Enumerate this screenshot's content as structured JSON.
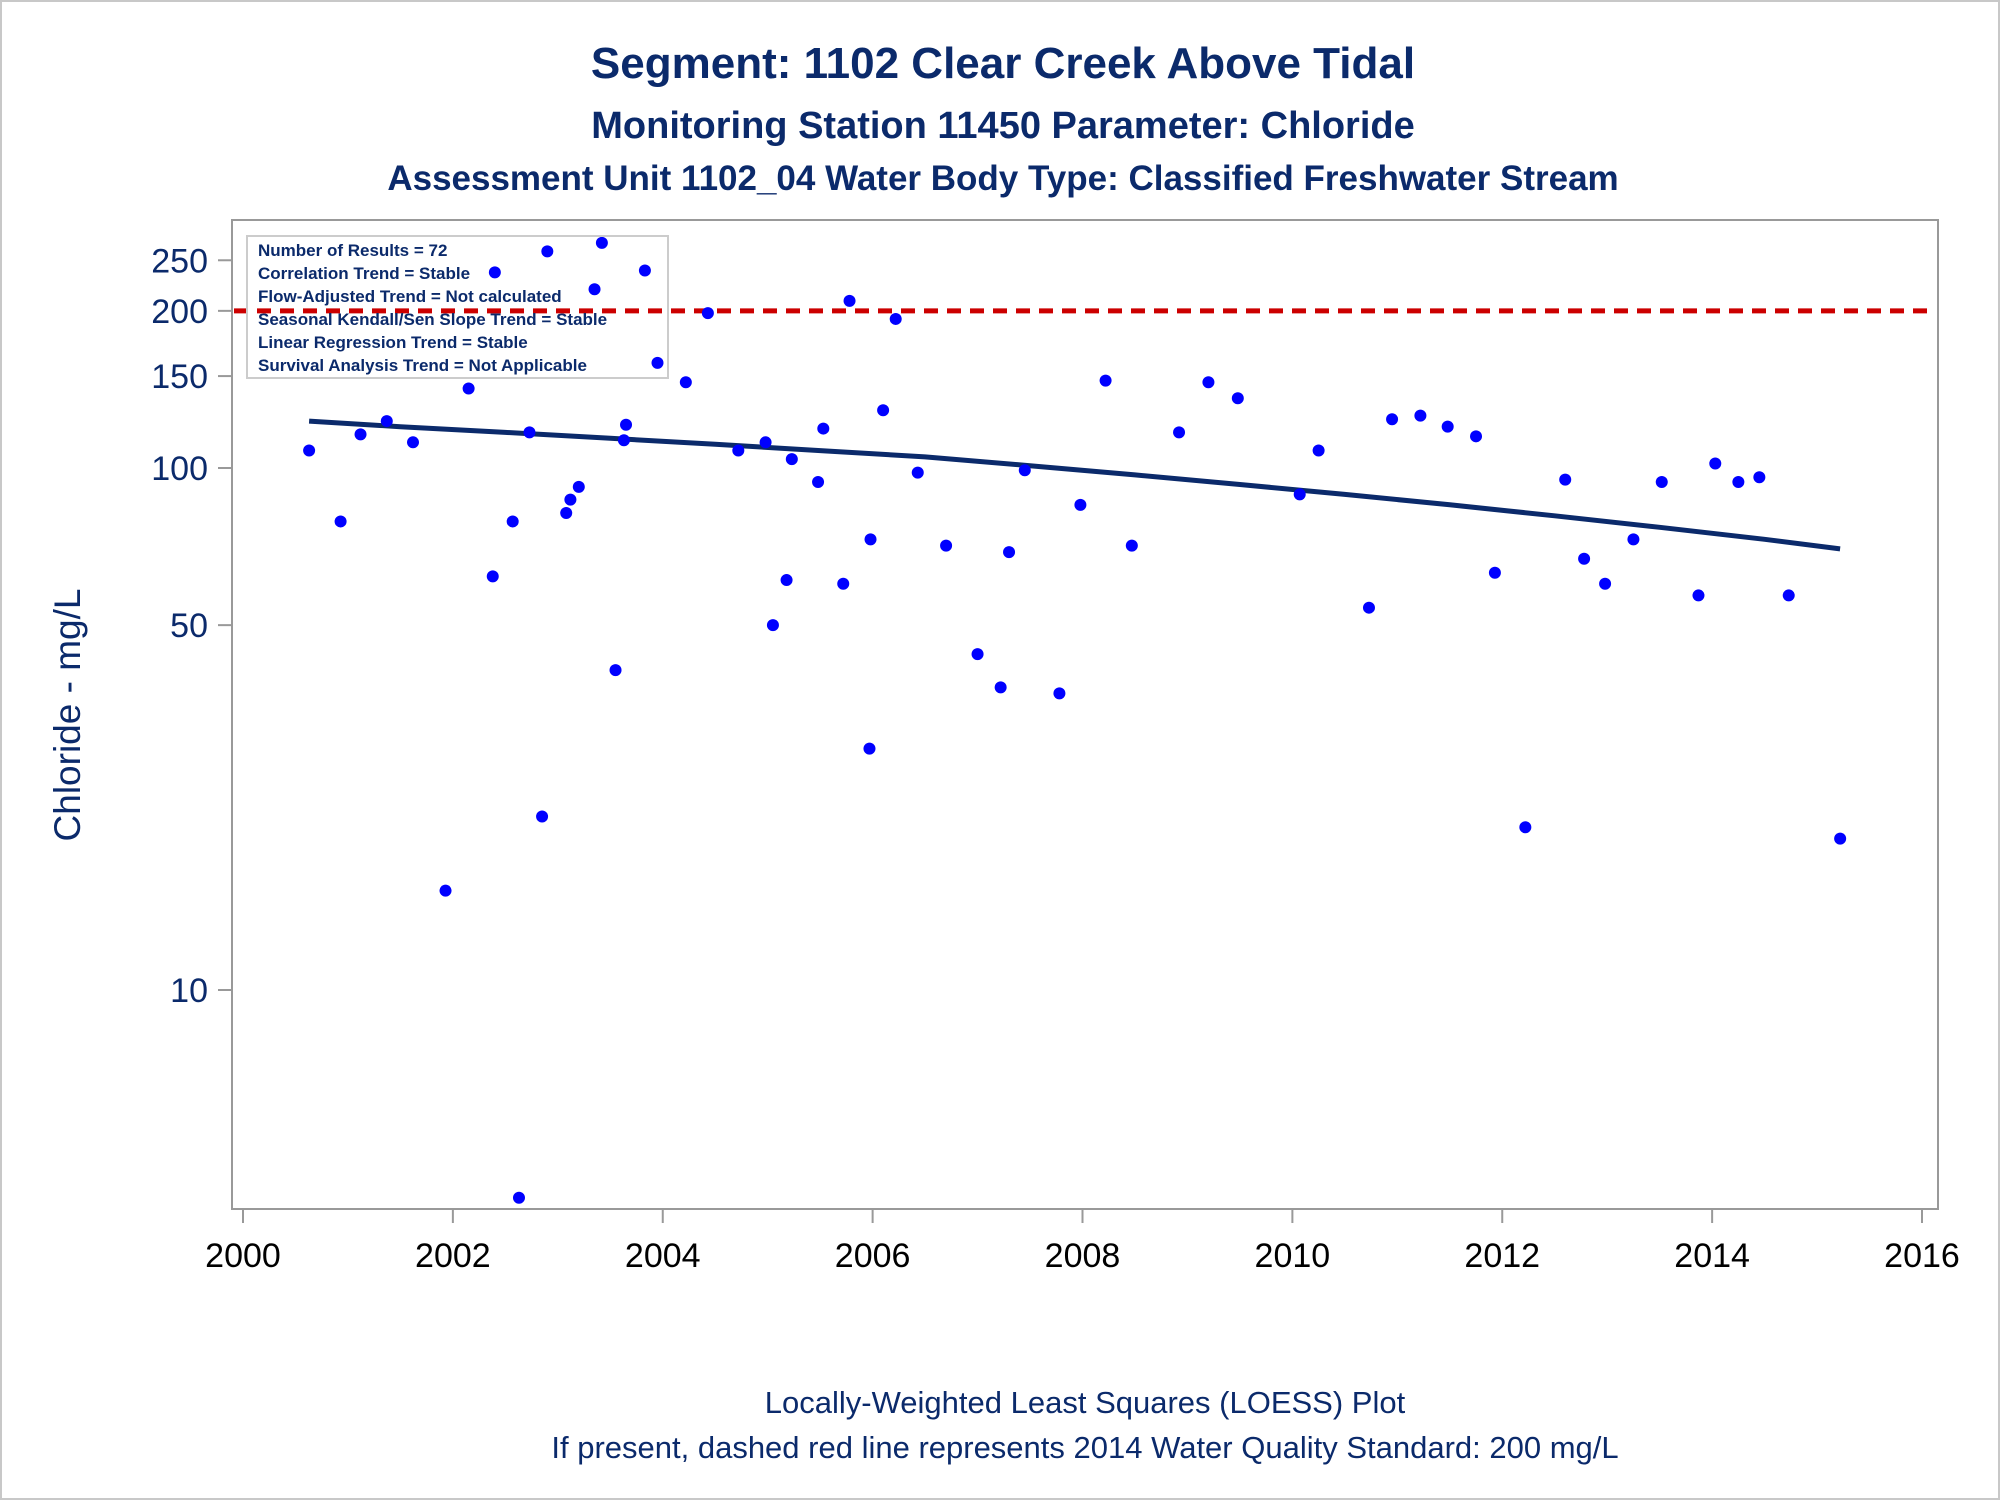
{
  "chart_data": {
    "type": "scatter",
    "title": "Segment: 1102  Clear Creek Above Tidal",
    "subtitle": "Monitoring Station 11450 Parameter: Chloride",
    "subtitle2": "Assessment Unit 1102_04   Water Body Type: Classified Freshwater Stream",
    "xlabel": "",
    "ylabel": "Chloride - mg/L",
    "footnote1": "Locally-Weighted Least Squares (LOESS) Plot",
    "footnote2": "If present, dashed red line represents 2014 Water Quality Standard: 200    mg/L",
    "y_scale": "log",
    "xlim": [
      2000,
      2016
    ],
    "ylim": [
      4,
      300
    ],
    "x_ticks": [
      2000,
      2002,
      2004,
      2006,
      2008,
      2010,
      2012,
      2014,
      2016
    ],
    "y_ticks": [
      10,
      50,
      100,
      150,
      200,
      250
    ],
    "grid": false,
    "legend_placement": "top-left",
    "info_box": [
      "Number of Results = 72",
      "Correlation Trend = Stable",
      "Flow-Adjusted Trend = Not calculated",
      "Seasonal Kendall/Sen Slope Trend = Stable",
      "Linear Regression Trend = Stable",
      "Survival Analysis Trend = Not Applicable"
    ],
    "standard_line": {
      "value": 200,
      "color": "#cc0000",
      "style": "dashed"
    },
    "colors": {
      "points": "#0000ff",
      "trend": "#0b2a6b",
      "text": "#0b2a6b",
      "axis": "#999999"
    },
    "series": [
      {
        "type": "scatter",
        "points": [
          [
            2000.63,
            108
          ],
          [
            2000.93,
            79
          ],
          [
            2001.12,
            116
          ],
          [
            2001.37,
            123
          ],
          [
            2001.62,
            112
          ],
          [
            2001.93,
            15.5
          ],
          [
            2002.15,
            142
          ],
          [
            2002.38,
            62
          ],
          [
            2002.4,
            237
          ],
          [
            2002.57,
            79
          ],
          [
            2002.63,
            4
          ],
          [
            2002.73,
            117
          ],
          [
            2002.85,
            21.5
          ],
          [
            2002.9,
            260
          ],
          [
            2003.08,
            82
          ],
          [
            2003.12,
            87
          ],
          [
            2003.2,
            92
          ],
          [
            2003.35,
            220
          ],
          [
            2003.42,
            270
          ],
          [
            2003.55,
            41
          ],
          [
            2003.63,
            113
          ],
          [
            2003.65,
            121
          ],
          [
            2003.83,
            239
          ],
          [
            2003.95,
            159
          ],
          [
            2004.22,
            146
          ],
          [
            2004.43,
            198
          ],
          [
            2004.72,
            108
          ],
          [
            2004.98,
            112
          ],
          [
            2005.05,
            50
          ],
          [
            2005.18,
            61
          ],
          [
            2005.23,
            104
          ],
          [
            2005.48,
            94
          ],
          [
            2005.53,
            119
          ],
          [
            2005.72,
            60
          ],
          [
            2005.78,
            209
          ],
          [
            2005.98,
            73
          ],
          [
            2005.97,
            29
          ],
          [
            2006.1,
            129
          ],
          [
            2006.22,
            193
          ],
          [
            2006.43,
            98
          ],
          [
            2006.7,
            71
          ],
          [
            2007.0,
            44
          ],
          [
            2007.22,
            38
          ],
          [
            2007.3,
            69
          ],
          [
            2007.45,
            99
          ],
          [
            2007.78,
            37
          ],
          [
            2007.98,
            85
          ],
          [
            2008.22,
            147
          ],
          [
            2008.47,
            71
          ],
          [
            2008.92,
            117
          ],
          [
            2009.2,
            146
          ],
          [
            2009.48,
            136
          ],
          [
            2010.07,
            89
          ],
          [
            2010.25,
            108
          ],
          [
            2010.73,
            54
          ],
          [
            2010.95,
            124
          ],
          [
            2011.22,
            126
          ],
          [
            2011.48,
            120
          ],
          [
            2011.75,
            115
          ],
          [
            2011.93,
            63
          ],
          [
            2012.22,
            20.5
          ],
          [
            2012.6,
            95
          ],
          [
            2012.78,
            67
          ],
          [
            2012.98,
            60
          ],
          [
            2013.25,
            73
          ],
          [
            2013.52,
            94
          ],
          [
            2013.87,
            57
          ],
          [
            2014.03,
            102
          ],
          [
            2014.25,
            94
          ],
          [
            2014.45,
            96
          ],
          [
            2014.73,
            57
          ],
          [
            2015.22,
            19.5
          ]
        ]
      },
      {
        "type": "line",
        "points": [
          [
            2000.63,
            123
          ],
          [
            2001.5,
            120
          ],
          [
            2002.5,
            117
          ],
          [
            2003.5,
            114
          ],
          [
            2004.5,
            111
          ],
          [
            2005.5,
            108
          ],
          [
            2006.5,
            105
          ],
          [
            2007.5,
            101
          ],
          [
            2008.5,
            97
          ],
          [
            2009.5,
            93
          ],
          [
            2010.5,
            89
          ],
          [
            2011.5,
            85
          ],
          [
            2012.5,
            81
          ],
          [
            2013.5,
            77
          ],
          [
            2014.5,
            73
          ],
          [
            2015.22,
            70
          ]
        ]
      }
    ]
  }
}
